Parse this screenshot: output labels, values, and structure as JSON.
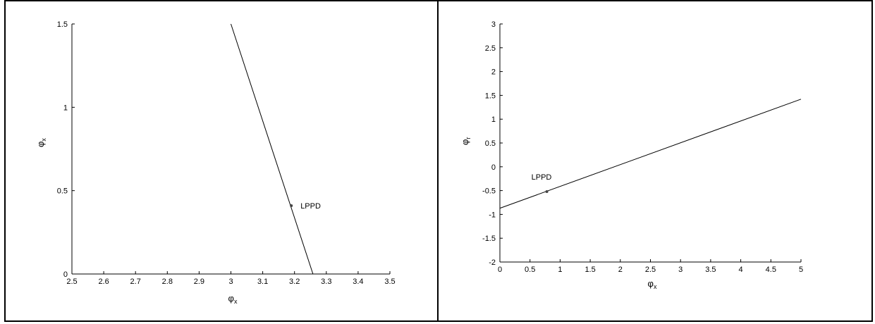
{
  "chart_data": [
    {
      "type": "line",
      "xlabel": "φ",
      "xlabel_sub": "x",
      "ylabel": "φ",
      "ylabel_sub": "x",
      "xlim": [
        2.5,
        3.5
      ],
      "ylim": [
        0,
        1.5
      ],
      "xticks": [
        2.5,
        2.6,
        2.7,
        2.8,
        2.9,
        3,
        3.1,
        3.2,
        3.3,
        3.4,
        3.5
      ],
      "xtick_labels": [
        "2.5",
        "2.6",
        "2.7",
        "2.8",
        "2.9",
        "3",
        "3.1",
        "3.2",
        "3.3",
        "3.4",
        "3.5"
      ],
      "yticks": [
        0,
        0.5,
        1,
        1.5
      ],
      "ytick_labels": [
        "0",
        "0.5",
        "1",
        "1.5"
      ],
      "grid": false,
      "series": [
        {
          "x": [
            3.0,
            3.258
          ],
          "y": [
            1.5,
            0.0
          ],
          "color": "#000000"
        }
      ],
      "points": [
        {
          "x": 3.19,
          "y": 0.41,
          "label": "LPPD"
        }
      ]
    },
    {
      "type": "line",
      "xlabel": "φ",
      "xlabel_sub": "x",
      "ylabel": "φ",
      "ylabel_sub": "r",
      "xlim": [
        0,
        5
      ],
      "ylim": [
        -2,
        3
      ],
      "xticks": [
        0,
        0.5,
        1,
        1.5,
        2,
        2.5,
        3,
        3.5,
        4,
        4.5,
        5
      ],
      "xtick_labels": [
        "0",
        "0.5",
        "1",
        "1.5",
        "2",
        "2.5",
        "3",
        "3.5",
        "4",
        "4.5",
        "5"
      ],
      "yticks": [
        -2,
        -1.5,
        -1,
        -0.5,
        0,
        0.5,
        1,
        1.5,
        2,
        2.5,
        3
      ],
      "ytick_labels": [
        "-2",
        "-1.5",
        "-1",
        "-0.5",
        "0",
        "0.5",
        "1",
        "1.5",
        "2",
        "2.5",
        "3"
      ],
      "grid": false,
      "series": [
        {
          "x": [
            0,
            5
          ],
          "y": [
            -0.87,
            1.42
          ],
          "color": "#000000"
        }
      ],
      "points": [
        {
          "x": 0.78,
          "y": -0.52,
          "label": "LPPD"
        }
      ]
    }
  ]
}
